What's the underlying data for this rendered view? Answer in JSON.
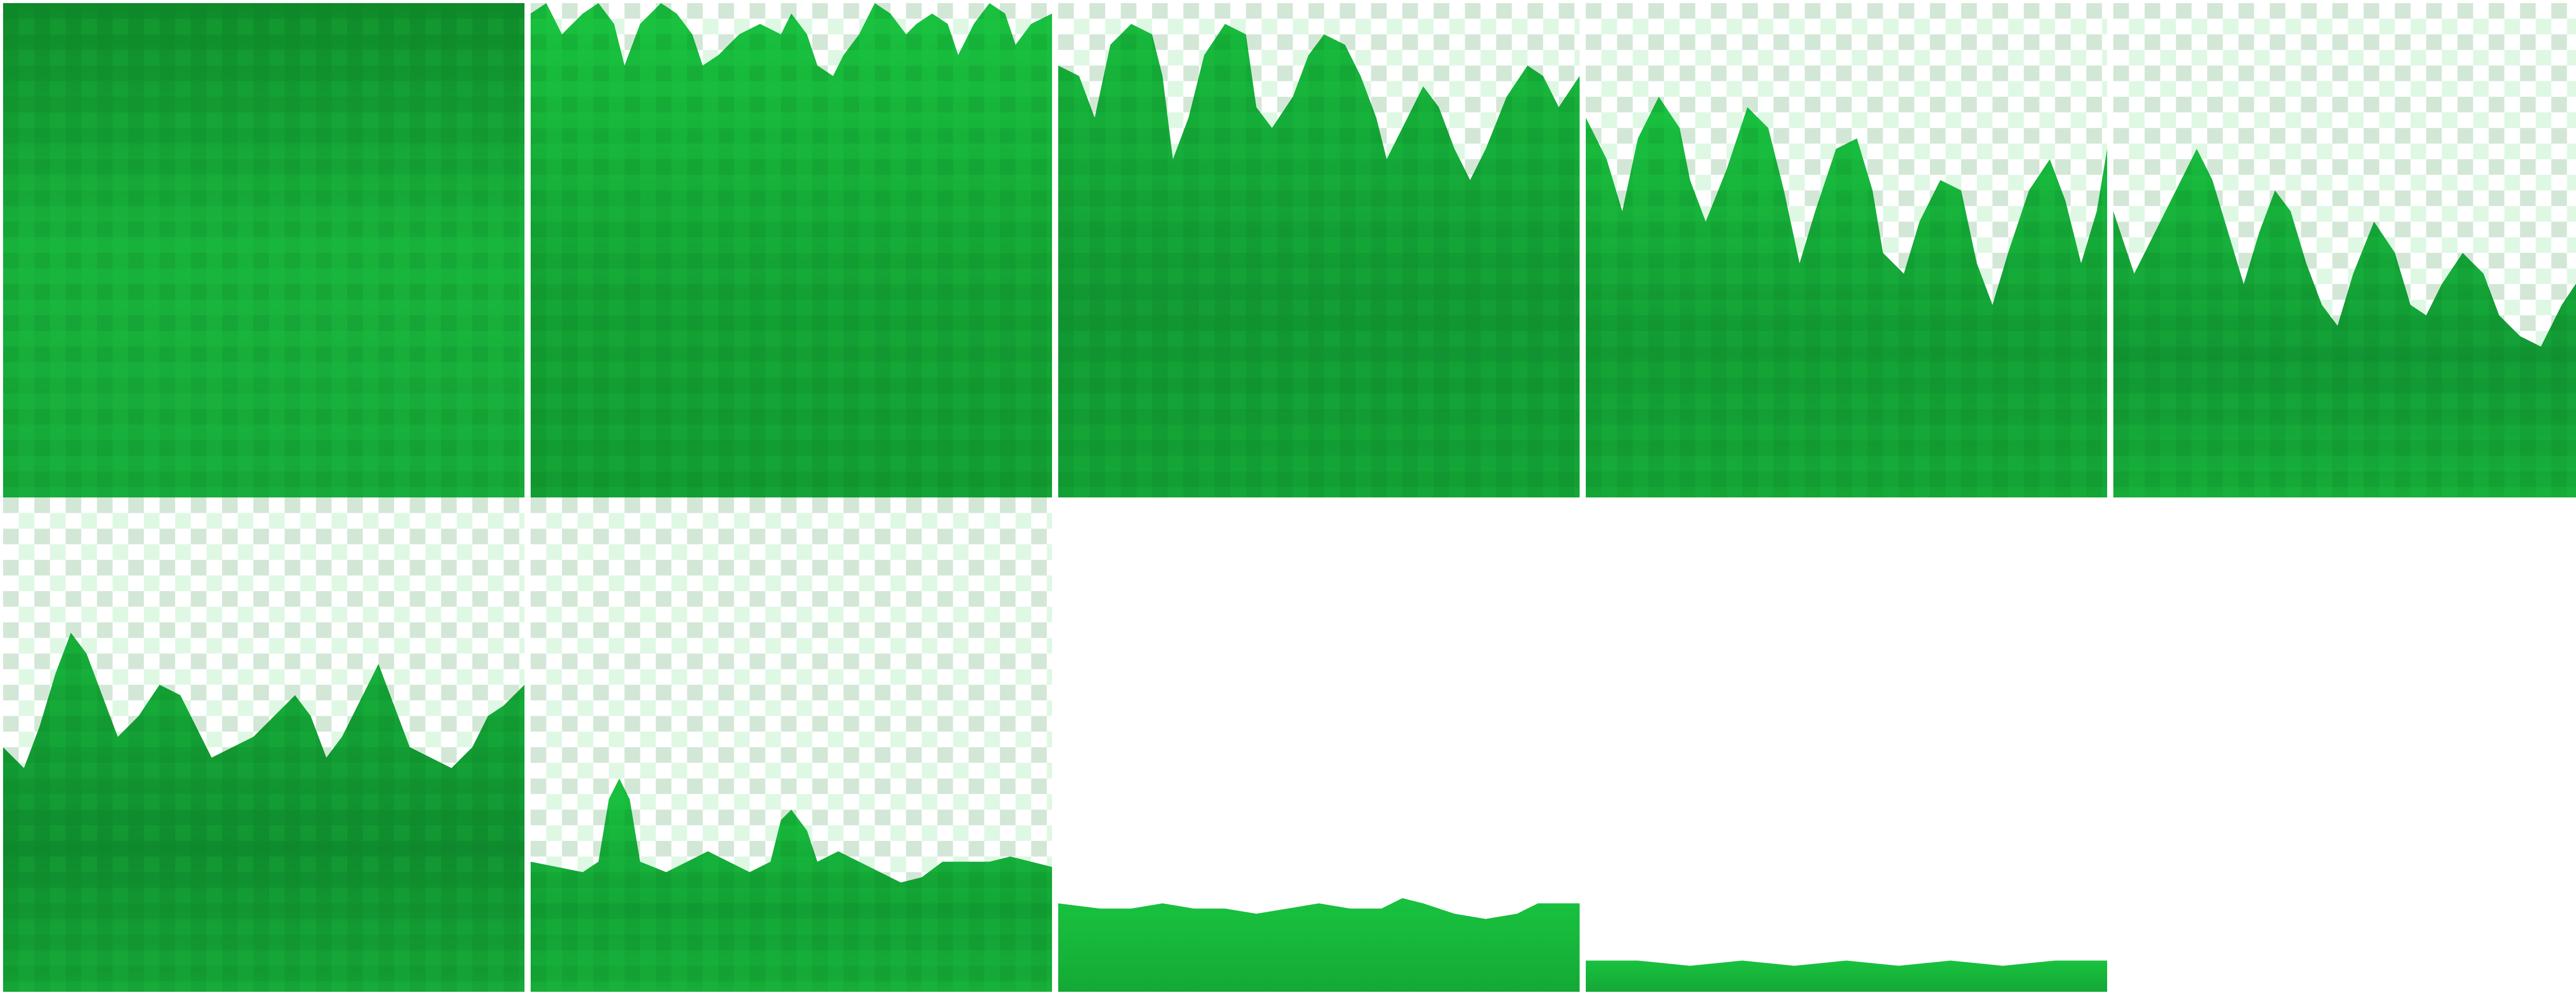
{
  "sprite_sheet": {
    "asset": "grass-tile-growth-stages",
    "colors": {
      "background": "#ffffff",
      "grass_light": "#19c23f",
      "grass_mid": "#14a834",
      "grass_dark": "#0c7a22"
    },
    "frames": [
      {
        "stage": 1,
        "fill_level": 1.0
      },
      {
        "stage": 2,
        "fill_level": 0.96
      },
      {
        "stage": 3,
        "fill_level": 0.86
      },
      {
        "stage": 4,
        "fill_level": 0.8
      },
      {
        "stage": 5,
        "fill_level": 0.66
      },
      {
        "stage": 6,
        "fill_level": 0.5
      },
      {
        "stage": 7,
        "fill_level": 0.35
      },
      {
        "stage": 8,
        "fill_level": 0.18
      },
      {
        "stage": 9,
        "fill_level": 0.06
      }
    ]
  }
}
